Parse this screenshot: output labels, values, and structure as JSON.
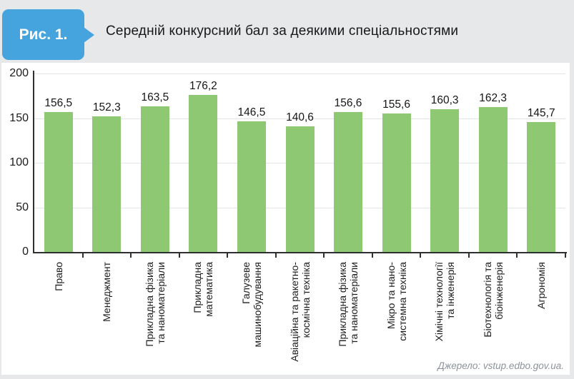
{
  "figure_label": "Рис. 1.",
  "title": "Середній конкурсний бал за деякими спеціальностями",
  "source": "Джерело: vstup.edbo.gov.ua.",
  "colors": {
    "accent_blue": "#45a4dd",
    "bar_green": "#8fc873",
    "page_gray": "#e7e8e9",
    "card_white": "#ffffff",
    "axis": "#2e2f31",
    "gridline": "#e3e4e6",
    "source_gray": "#8d939b"
  },
  "chart_data": {
    "type": "bar",
    "title": "Середній конкурсний бал за деякими спеціальностями",
    "categories": [
      "Право",
      "Менеджмент",
      "Прикладна фізика\nта наноматеріали",
      "Прикладна\nматематика",
      "Галузеве\nмашинобудування",
      "Авіаційна та ракетно-\nкосмічна техніка",
      "Прикладна фізика\nта наноматеріали",
      "Мікро та нано-\nсистемна техніка",
      "Хімічні технології\nта інженерія",
      "Біотехнологія та\nбіоінженерія",
      "Агрономія"
    ],
    "values": [
      156.5,
      152.3,
      163.5,
      176.2,
      146.5,
      140.6,
      156.6,
      155.6,
      160.3,
      162.3,
      145.7
    ],
    "value_labels": [
      "156,5",
      "152,3",
      "163,5",
      "176,2",
      "146,5",
      "140,6",
      "156,6",
      "155,6",
      "160,3",
      "162,3",
      "145,7"
    ],
    "xlabel": "",
    "ylabel": "",
    "ylim": [
      0,
      200
    ],
    "yticks": [
      0,
      50,
      100,
      150,
      200
    ],
    "grid": true,
    "legend": "none",
    "xlabel_rotation": 90
  }
}
